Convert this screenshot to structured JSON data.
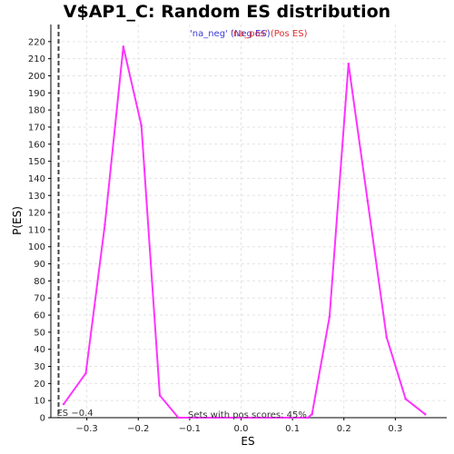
{
  "chart_data": {
    "type": "line",
    "title": "V$AP1_C: Random ES distribution",
    "xlabel": "ES",
    "ylabel": "P(ES)",
    "xlim": [
      -0.37,
      0.4
    ],
    "ylim": [
      0,
      230
    ],
    "xticks": [
      -0.3,
      -0.2,
      -0.1,
      0.0,
      0.1,
      0.2,
      0.3
    ],
    "xtick_labels": [
      "−0.3",
      "−0.2",
      "−0.1",
      "0.0",
      "0.1",
      "0.2",
      "0.3"
    ],
    "yticks": [
      0,
      10,
      20,
      30,
      40,
      50,
      60,
      70,
      80,
      90,
      100,
      110,
      120,
      130,
      140,
      150,
      160,
      170,
      180,
      190,
      200,
      210,
      220
    ],
    "grid": true,
    "legend": {
      "placement": "top-center",
      "entries": [
        {
          "label": "'na_neg' (Neg ES)",
          "color": "#3b3bdc"
        },
        {
          "label": "'na_pos' (Pos ES)",
          "color": "#e03030"
        }
      ]
    },
    "series": [
      {
        "color": "#ff33ff",
        "x": [
          -0.345,
          -0.302,
          -0.265,
          -0.229,
          -0.194,
          -0.158,
          -0.122,
          -0.086,
          -0.05,
          -0.014,
          0.022,
          0.058,
          0.094,
          0.13,
          0.138,
          0.172,
          0.209,
          0.246,
          0.283,
          0.32,
          0.358
        ],
        "y": [
          8,
          26,
          113,
          217,
          171,
          13,
          0,
          0,
          0,
          0,
          0,
          0,
          0,
          0,
          2,
          59,
          207,
          127,
          47,
          11,
          2
        ]
      }
    ],
    "es_line": {
      "x": -0.355,
      "label": "ES −0.4",
      "color": "#444444"
    },
    "annotation": "Sets with pos scores: 45%"
  }
}
